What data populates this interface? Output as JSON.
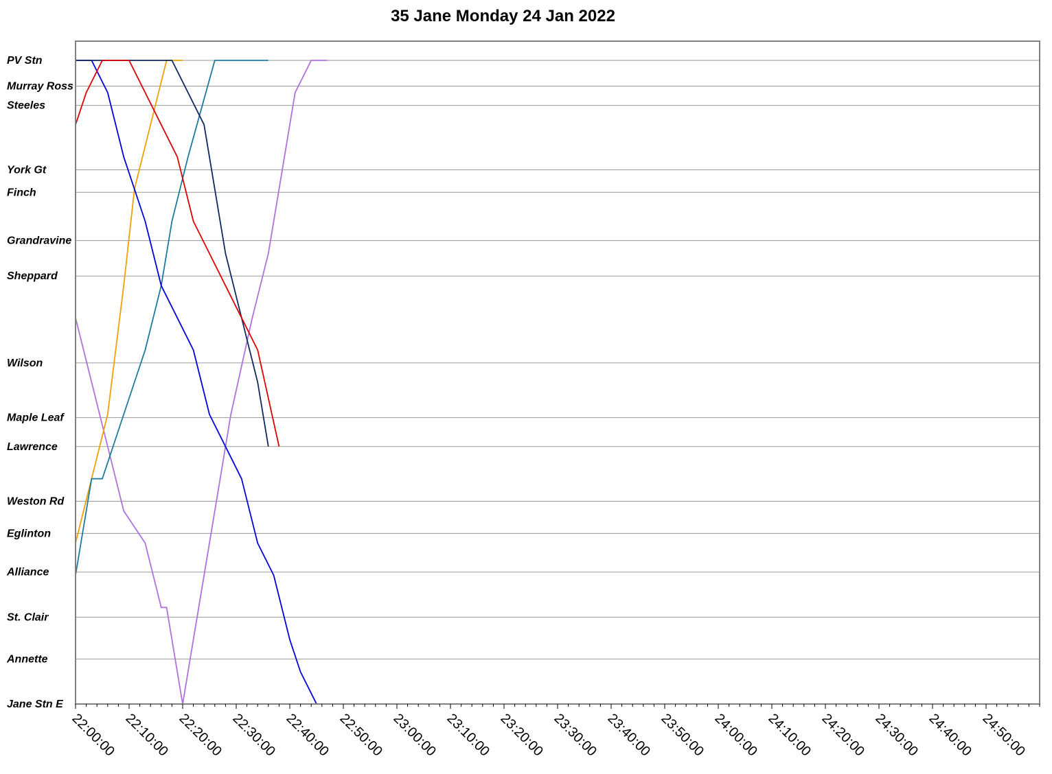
{
  "chart_data": {
    "type": "line",
    "title": "35 Jane Monday 24 Jan 2022",
    "xlabel": "",
    "ylabel": "",
    "x_tick_labels": [
      "22:00:00",
      "22:10:00",
      "22:20:00",
      "22:30:00",
      "22:40:00",
      "22:50:00",
      "23:00:00",
      "23:10:00",
      "23:20:00",
      "23:30:00",
      "23:40:00",
      "23:50:00",
      "24:00:00",
      "24:10:00",
      "24:20:00",
      "24:30:00",
      "24:40:00",
      "24:50:00"
    ],
    "x_unit": "minutes after 22:00:00",
    "xlim": [
      0,
      180
    ],
    "stops": [
      "PV Stn",
      "Murray Ross",
      "Steeles",
      "York Gt",
      "Finch",
      "Grandravine",
      "Sheppard",
      "Wilson",
      "Maple Leaf",
      "Lawrence",
      "Weston Rd",
      "Eglinton",
      "Alliance",
      "St. Clair",
      "Annette",
      "Jane Stn E"
    ],
    "stop_positions": [
      0,
      0.8,
      1.4,
      3.4,
      4.1,
      5.6,
      6.7,
      9.4,
      11.1,
      12.0,
      13.7,
      14.7,
      15.9,
      17.3,
      18.6,
      20.0
    ],
    "ylim": [
      0,
      20
    ],
    "y_unit": "distance along route",
    "grid": true,
    "legend": "none",
    "series": [
      {
        "color": "#b070e0",
        "x": [
          0,
          3,
          6,
          9,
          13,
          16,
          17,
          19,
          20,
          23,
          26,
          29,
          33,
          36,
          39,
          41,
          44,
          47
        ],
        "y": [
          8,
          10,
          12,
          14,
          15,
          17,
          17,
          19,
          20,
          17,
          14,
          11,
          8,
          6,
          3,
          1,
          0,
          0
        ]
      },
      {
        "color": "#f0a000",
        "x": [
          0,
          3,
          6,
          9,
          11,
          14,
          17,
          19,
          20
        ],
        "y": [
          15,
          13,
          11,
          7,
          4,
          2,
          0,
          0,
          0
        ]
      },
      {
        "color": "#1a7aa0",
        "x": [
          0,
          2,
          3,
          5,
          9,
          13,
          16,
          18,
          21,
          26,
          29,
          31,
          34,
          36
        ],
        "y": [
          16,
          14,
          13,
          13,
          11,
          9,
          7,
          5,
          3,
          0,
          0,
          0,
          0,
          0
        ]
      },
      {
        "color": "#0000e0",
        "x": [
          0,
          1,
          3,
          6,
          9,
          13,
          16,
          19,
          22,
          25,
          28,
          31,
          34,
          37,
          40,
          42,
          45,
          47
        ],
        "y": [
          0,
          0,
          0,
          1,
          3,
          5,
          7,
          8,
          9,
          11,
          12,
          13,
          15,
          16,
          18,
          19,
          20,
          20
        ]
      },
      {
        "color": "#102860",
        "x": [
          0,
          3,
          6,
          9,
          12,
          15,
          18,
          21,
          24,
          26,
          28,
          31,
          34,
          36
        ],
        "y": [
          0,
          0,
          0,
          0,
          0,
          0,
          0,
          1,
          2,
          4,
          6,
          8,
          10,
          12
        ]
      },
      {
        "color": "#e00000",
        "x": [
          0,
          2,
          5,
          8,
          10,
          13,
          16,
          19,
          22,
          25,
          28,
          31,
          34,
          38
        ],
        "y": [
          2,
          1,
          0,
          0,
          0,
          1,
          2,
          3,
          5,
          6,
          7,
          8,
          9,
          12
        ]
      }
    ]
  }
}
